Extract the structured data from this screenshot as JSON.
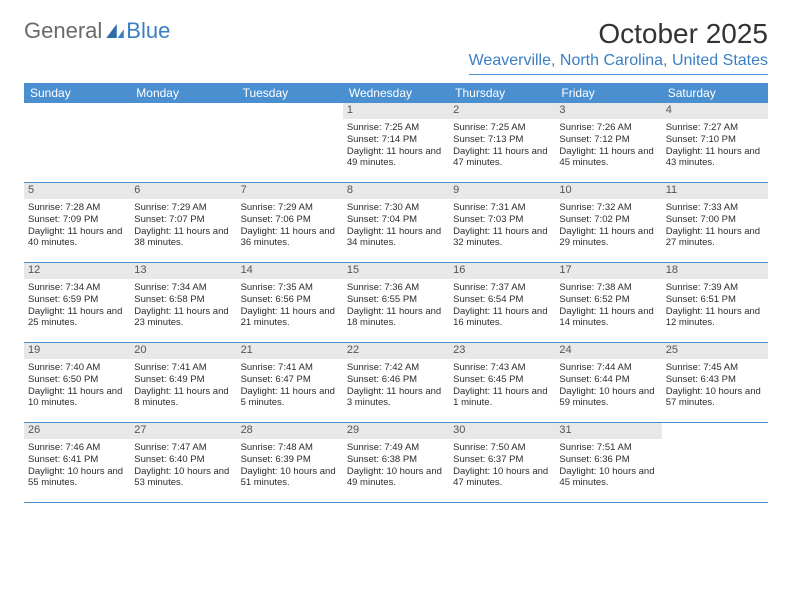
{
  "logo": {
    "general": "General",
    "blue": "Blue"
  },
  "title": "October 2025",
  "location": "Weaverville, North Carolina, United States",
  "colors": {
    "header_bg": "#4a8fd0",
    "header_fg": "#ffffff",
    "daynum_bg": "#e8e8e8",
    "daynum_fg": "#555555",
    "rule": "#4a8fd0",
    "accent": "#3a7fc4",
    "text": "#2c2c2c"
  },
  "days_of_week": [
    "Sunday",
    "Monday",
    "Tuesday",
    "Wednesday",
    "Thursday",
    "Friday",
    "Saturday"
  ],
  "weeks": [
    [
      null,
      null,
      null,
      {
        "n": "1",
        "sunrise": "7:25 AM",
        "sunset": "7:14 PM",
        "dl": "11 hours and 49 minutes."
      },
      {
        "n": "2",
        "sunrise": "7:25 AM",
        "sunset": "7:13 PM",
        "dl": "11 hours and 47 minutes."
      },
      {
        "n": "3",
        "sunrise": "7:26 AM",
        "sunset": "7:12 PM",
        "dl": "11 hours and 45 minutes."
      },
      {
        "n": "4",
        "sunrise": "7:27 AM",
        "sunset": "7:10 PM",
        "dl": "11 hours and 43 minutes."
      }
    ],
    [
      {
        "n": "5",
        "sunrise": "7:28 AM",
        "sunset": "7:09 PM",
        "dl": "11 hours and 40 minutes."
      },
      {
        "n": "6",
        "sunrise": "7:29 AM",
        "sunset": "7:07 PM",
        "dl": "11 hours and 38 minutes."
      },
      {
        "n": "7",
        "sunrise": "7:29 AM",
        "sunset": "7:06 PM",
        "dl": "11 hours and 36 minutes."
      },
      {
        "n": "8",
        "sunrise": "7:30 AM",
        "sunset": "7:04 PM",
        "dl": "11 hours and 34 minutes."
      },
      {
        "n": "9",
        "sunrise": "7:31 AM",
        "sunset": "7:03 PM",
        "dl": "11 hours and 32 minutes."
      },
      {
        "n": "10",
        "sunrise": "7:32 AM",
        "sunset": "7:02 PM",
        "dl": "11 hours and 29 minutes."
      },
      {
        "n": "11",
        "sunrise": "7:33 AM",
        "sunset": "7:00 PM",
        "dl": "11 hours and 27 minutes."
      }
    ],
    [
      {
        "n": "12",
        "sunrise": "7:34 AM",
        "sunset": "6:59 PM",
        "dl": "11 hours and 25 minutes."
      },
      {
        "n": "13",
        "sunrise": "7:34 AM",
        "sunset": "6:58 PM",
        "dl": "11 hours and 23 minutes."
      },
      {
        "n": "14",
        "sunrise": "7:35 AM",
        "sunset": "6:56 PM",
        "dl": "11 hours and 21 minutes."
      },
      {
        "n": "15",
        "sunrise": "7:36 AM",
        "sunset": "6:55 PM",
        "dl": "11 hours and 18 minutes."
      },
      {
        "n": "16",
        "sunrise": "7:37 AM",
        "sunset": "6:54 PM",
        "dl": "11 hours and 16 minutes."
      },
      {
        "n": "17",
        "sunrise": "7:38 AM",
        "sunset": "6:52 PM",
        "dl": "11 hours and 14 minutes."
      },
      {
        "n": "18",
        "sunrise": "7:39 AM",
        "sunset": "6:51 PM",
        "dl": "11 hours and 12 minutes."
      }
    ],
    [
      {
        "n": "19",
        "sunrise": "7:40 AM",
        "sunset": "6:50 PM",
        "dl": "11 hours and 10 minutes."
      },
      {
        "n": "20",
        "sunrise": "7:41 AM",
        "sunset": "6:49 PM",
        "dl": "11 hours and 8 minutes."
      },
      {
        "n": "21",
        "sunrise": "7:41 AM",
        "sunset": "6:47 PM",
        "dl": "11 hours and 5 minutes."
      },
      {
        "n": "22",
        "sunrise": "7:42 AM",
        "sunset": "6:46 PM",
        "dl": "11 hours and 3 minutes."
      },
      {
        "n": "23",
        "sunrise": "7:43 AM",
        "sunset": "6:45 PM",
        "dl": "11 hours and 1 minute."
      },
      {
        "n": "24",
        "sunrise": "7:44 AM",
        "sunset": "6:44 PM",
        "dl": "10 hours and 59 minutes."
      },
      {
        "n": "25",
        "sunrise": "7:45 AM",
        "sunset": "6:43 PM",
        "dl": "10 hours and 57 minutes."
      }
    ],
    [
      {
        "n": "26",
        "sunrise": "7:46 AM",
        "sunset": "6:41 PM",
        "dl": "10 hours and 55 minutes."
      },
      {
        "n": "27",
        "sunrise": "7:47 AM",
        "sunset": "6:40 PM",
        "dl": "10 hours and 53 minutes."
      },
      {
        "n": "28",
        "sunrise": "7:48 AM",
        "sunset": "6:39 PM",
        "dl": "10 hours and 51 minutes."
      },
      {
        "n": "29",
        "sunrise": "7:49 AM",
        "sunset": "6:38 PM",
        "dl": "10 hours and 49 minutes."
      },
      {
        "n": "30",
        "sunrise": "7:50 AM",
        "sunset": "6:37 PM",
        "dl": "10 hours and 47 minutes."
      },
      {
        "n": "31",
        "sunrise": "7:51 AM",
        "sunset": "6:36 PM",
        "dl": "10 hours and 45 minutes."
      },
      null
    ]
  ],
  "labels": {
    "sunrise": "Sunrise:",
    "sunset": "Sunset:",
    "daylight": "Daylight:"
  },
  "style": {
    "body_fontsize": 9.5,
    "daynum_fontsize": 11,
    "dow_fontsize": 12,
    "title_fontsize": 28,
    "location_fontsize": 16,
    "cell_min_height": 79
  }
}
